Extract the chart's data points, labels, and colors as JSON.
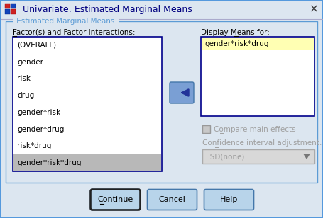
{
  "title": "Univariate: Estimated Marginal Means",
  "bg_color": "#dce6f0",
  "title_bar_bg": "#dce6f0",
  "title_bar_border": "#5599dd",
  "group_label": "Estimated Marginal Means",
  "left_label": "Factor(s) and Factor Interactions:",
  "right_label": "Display Means for:",
  "left_items": [
    "(OVERALL)",
    "gender",
    "risk",
    "drug",
    "gender*risk",
    "gender*drug",
    "risk*drug",
    "gender*risk*drug"
  ],
  "right_items": [
    "gender*risk*drug"
  ],
  "selected_left": "gender*risk*drug",
  "compare_effects_label": "Compare main effects",
  "ci_label": "Confidence interval adjustment:",
  "ci_value": "LSD(none)",
  "buttons": [
    "Continue",
    "Cancel",
    "Help"
  ],
  "left_box_bg": "#ffffff",
  "right_box_bg": "#ffffff",
  "right_selected_bg": "#ffffb3",
  "left_selected_bg": "#b8b8b8",
  "group_border_color": "#5b9bd5",
  "box_border_color": "#00008b",
  "button_color": "#b8d4ea",
  "button_border": "#4477aa",
  "arrow_button_color": "#7a9fd4",
  "arrow_button_border": "#4477aa",
  "disabled_text_color": "#a0a0a0",
  "enabled_text_color": "#000000",
  "title_text_color": "#000080",
  "icon_colors": [
    "#cc0000",
    "#0055cc",
    "#0055cc",
    "#cc0000"
  ],
  "dialog_border_color": "#5599dd"
}
